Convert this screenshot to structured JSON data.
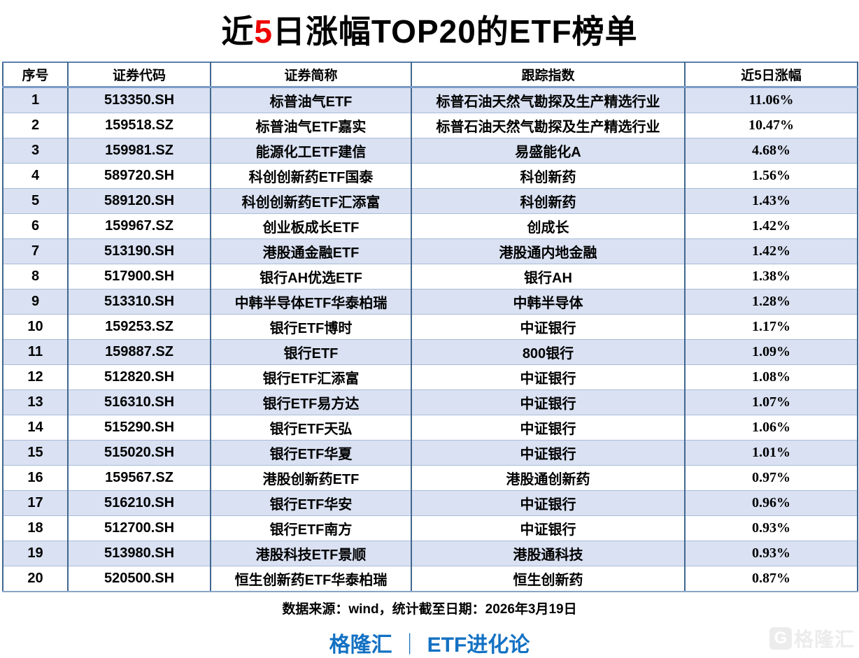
{
  "title": {
    "prefix": "近",
    "red": "5",
    "suffix": "日涨幅TOP20的ETF榜单"
  },
  "chart_data": {
    "type": "table",
    "title": "近5日涨幅TOP20的ETF榜单",
    "columns": [
      "序号",
      "证券代码",
      "证券简称",
      "跟踪指数",
      "近5日涨幅"
    ],
    "rows": [
      {
        "rank": "1",
        "code": "513350.SH",
        "name": "标普油气ETF",
        "index": "标普石油天然气勘探及生产精选行业",
        "change_5d": "11.06%"
      },
      {
        "rank": "2",
        "code": "159518.SZ",
        "name": "标普油气ETF嘉实",
        "index": "标普石油天然气勘探及生产精选行业",
        "change_5d": "10.47%"
      },
      {
        "rank": "3",
        "code": "159981.SZ",
        "name": "能源化工ETF建信",
        "index": "易盛能化A",
        "change_5d": "4.68%"
      },
      {
        "rank": "4",
        "code": "589720.SH",
        "name": "科创创新药ETF国泰",
        "index": "科创新药",
        "change_5d": "1.56%"
      },
      {
        "rank": "5",
        "code": "589120.SH",
        "name": "科创创新药ETF汇添富",
        "index": "科创新药",
        "change_5d": "1.43%"
      },
      {
        "rank": "6",
        "code": "159967.SZ",
        "name": "创业板成长ETF",
        "index": "创成长",
        "change_5d": "1.42%"
      },
      {
        "rank": "7",
        "code": "513190.SH",
        "name": "港股通金融ETF",
        "index": "港股通内地金融",
        "change_5d": "1.42%"
      },
      {
        "rank": "8",
        "code": "517900.SH",
        "name": "银行AH优选ETF",
        "index": "银行AH",
        "change_5d": "1.38%"
      },
      {
        "rank": "9",
        "code": "513310.SH",
        "name": "中韩半导体ETF华泰柏瑞",
        "index": "中韩半导体",
        "change_5d": "1.28%"
      },
      {
        "rank": "10",
        "code": "159253.SZ",
        "name": "银行ETF博时",
        "index": "中证银行",
        "change_5d": "1.17%"
      },
      {
        "rank": "11",
        "code": "159887.SZ",
        "name": "银行ETF",
        "index": "800银行",
        "change_5d": "1.09%"
      },
      {
        "rank": "12",
        "code": "512820.SH",
        "name": "银行ETF汇添富",
        "index": "中证银行",
        "change_5d": "1.08%"
      },
      {
        "rank": "13",
        "code": "516310.SH",
        "name": "银行ETF易方达",
        "index": "中证银行",
        "change_5d": "1.07%"
      },
      {
        "rank": "14",
        "code": "515290.SH",
        "name": "银行ETF天弘",
        "index": "中证银行",
        "change_5d": "1.06%"
      },
      {
        "rank": "15",
        "code": "515020.SH",
        "name": "银行ETF华夏",
        "index": "中证银行",
        "change_5d": "1.01%"
      },
      {
        "rank": "16",
        "code": "159567.SZ",
        "name": "港股创新药ETF",
        "index": "港股通创新药",
        "change_5d": "0.97%"
      },
      {
        "rank": "17",
        "code": "516210.SH",
        "name": "银行ETF华安",
        "index": "中证银行",
        "change_5d": "0.96%"
      },
      {
        "rank": "18",
        "code": "512700.SH",
        "name": "银行ETF南方",
        "index": "中证银行",
        "change_5d": "0.93%"
      },
      {
        "rank": "19",
        "code": "513980.SH",
        "name": "港股科技ETF景顺",
        "index": "港股通科技",
        "change_5d": "0.93%"
      },
      {
        "rank": "20",
        "code": "520500.SH",
        "name": "恒生创新药ETF华泰柏瑞",
        "index": "恒生创新药",
        "change_5d": "0.87%"
      }
    ]
  },
  "footer": {
    "source": "数据来源：wind，统计截至日期：2026年3月19日",
    "brand_left": "格隆汇",
    "brand_divider": "｜",
    "brand_right": "ETF进化论",
    "watermark_logo_letter": "G",
    "watermark_text": "格隆汇"
  },
  "colors": {
    "title_accent_red": "#ee0000",
    "value_red": "#e31c1c",
    "brand_blue": "#1371c3",
    "row_alt_blue": "#d9e1f2",
    "border_blue": "#41678f",
    "watermark_gray": "#ececec"
  }
}
